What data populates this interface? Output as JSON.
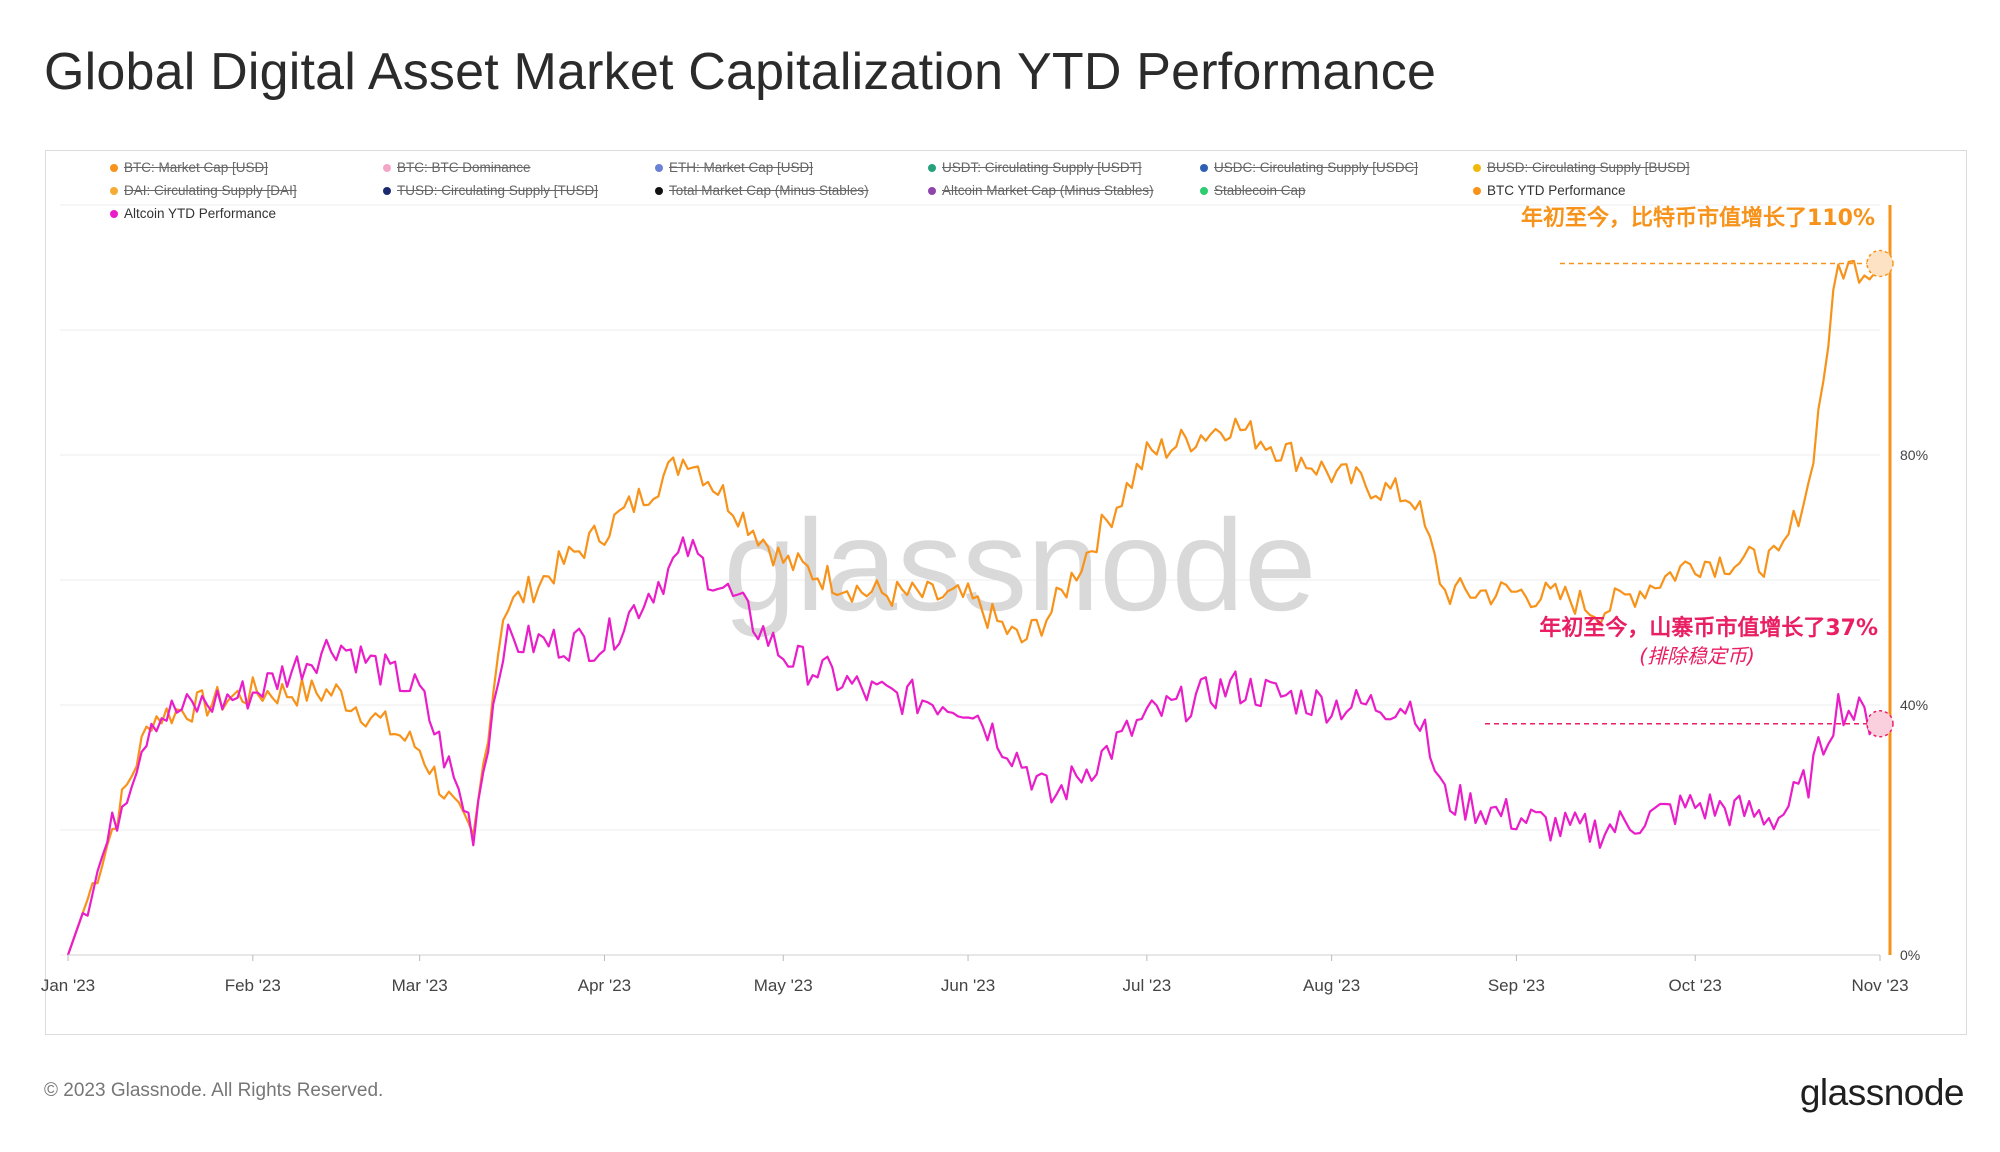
{
  "title": "Global Digital Asset Market Capitalization YTD Performance",
  "legend": [
    {
      "label": "BTC: Market Cap [USD]",
      "color": "#f7931a",
      "active": false
    },
    {
      "label": "BTC: BTC Dominance",
      "color": "#f4a6c8",
      "active": false
    },
    {
      "label": "ETH: Market Cap [USD]",
      "color": "#6a82d6",
      "active": false
    },
    {
      "label": "USDT: Circulating Supply [USDT]",
      "color": "#26a17b",
      "active": false
    },
    {
      "label": "USDC: Circulating Supply [USDC]",
      "color": "#2f5fb3",
      "active": false
    },
    {
      "label": "BUSD: Circulating Supply [BUSD]",
      "color": "#f0b90b",
      "active": false
    },
    {
      "label": "DAI: Circulating Supply [DAI]",
      "color": "#f5ac37",
      "active": false
    },
    {
      "label": "TUSD: Circulating Supply [TUSD]",
      "color": "#1a2a6c",
      "active": false
    },
    {
      "label": "Total Market Cap (Minus Stables)",
      "color": "#111111",
      "active": false
    },
    {
      "label": "Altcoin Market Cap (Minus Stables)",
      "color": "#8e44ad",
      "active": false
    },
    {
      "label": "Stablecoin Cap",
      "color": "#2ecc71",
      "active": false
    },
    {
      "label": "BTC YTD Performance",
      "color": "#f7931a",
      "active": true
    },
    {
      "label": "Altcoin YTD Performance",
      "color": "#e91ec8",
      "active": true
    }
  ],
  "watermark": "glassnode",
  "annotations": {
    "btc": "年初至今，比特币市值增长了110%",
    "alt": "年初至今，山寨币市值增长了37%",
    "alt_note": "(排除稳定币)"
  },
  "footer": "© 2023 Glassnode. All Rights Reserved.",
  "brand": "glassnode",
  "chart_data": {
    "type": "line",
    "x": [
      "2023-01-01",
      "2023-01-15",
      "2023-02-01",
      "2023-02-15",
      "2023-03-01",
      "2023-03-10",
      "2023-03-15",
      "2023-04-01",
      "2023-04-15",
      "2023-05-01",
      "2023-05-15",
      "2023-06-01",
      "2023-06-10",
      "2023-06-15",
      "2023-07-01",
      "2023-07-15",
      "2023-08-01",
      "2023-08-15",
      "2023-08-20",
      "2023-09-01",
      "2023-09-10",
      "2023-09-15",
      "2023-10-01",
      "2023-10-15",
      "2023-10-20",
      "2023-10-25",
      "2023-11-01"
    ],
    "xticks": [
      "Jan '23",
      "Feb '23",
      "Mar '23",
      "Apr '23",
      "May '23",
      "Jun '23",
      "Jul '23",
      "Aug '23",
      "Sep '23",
      "Oct '23",
      "Nov '23"
    ],
    "yticks": [
      "0%",
      "40%",
      "80%"
    ],
    "ylim": [
      0,
      120
    ],
    "y_axis_side": "right",
    "series": [
      {
        "name": "BTC YTD Performance",
        "color": "#f7931a",
        "values": [
          0,
          38,
          42,
          42,
          33,
          18,
          55,
          68,
          80,
          63,
          58,
          57,
          50,
          55,
          80,
          85,
          77,
          73,
          58,
          58,
          57,
          55,
          63,
          63,
          75,
          110,
          110
        ]
      },
      {
        "name": "Altcoin YTD Performance",
        "color": "#e91ec8",
        "values": [
          0,
          38,
          42,
          50,
          42,
          20,
          50,
          50,
          65,
          48,
          42,
          40,
          31,
          25,
          38,
          43,
          40,
          40,
          25,
          22,
          20,
          20,
          24,
          22,
          28,
          40,
          37
        ]
      }
    ]
  }
}
